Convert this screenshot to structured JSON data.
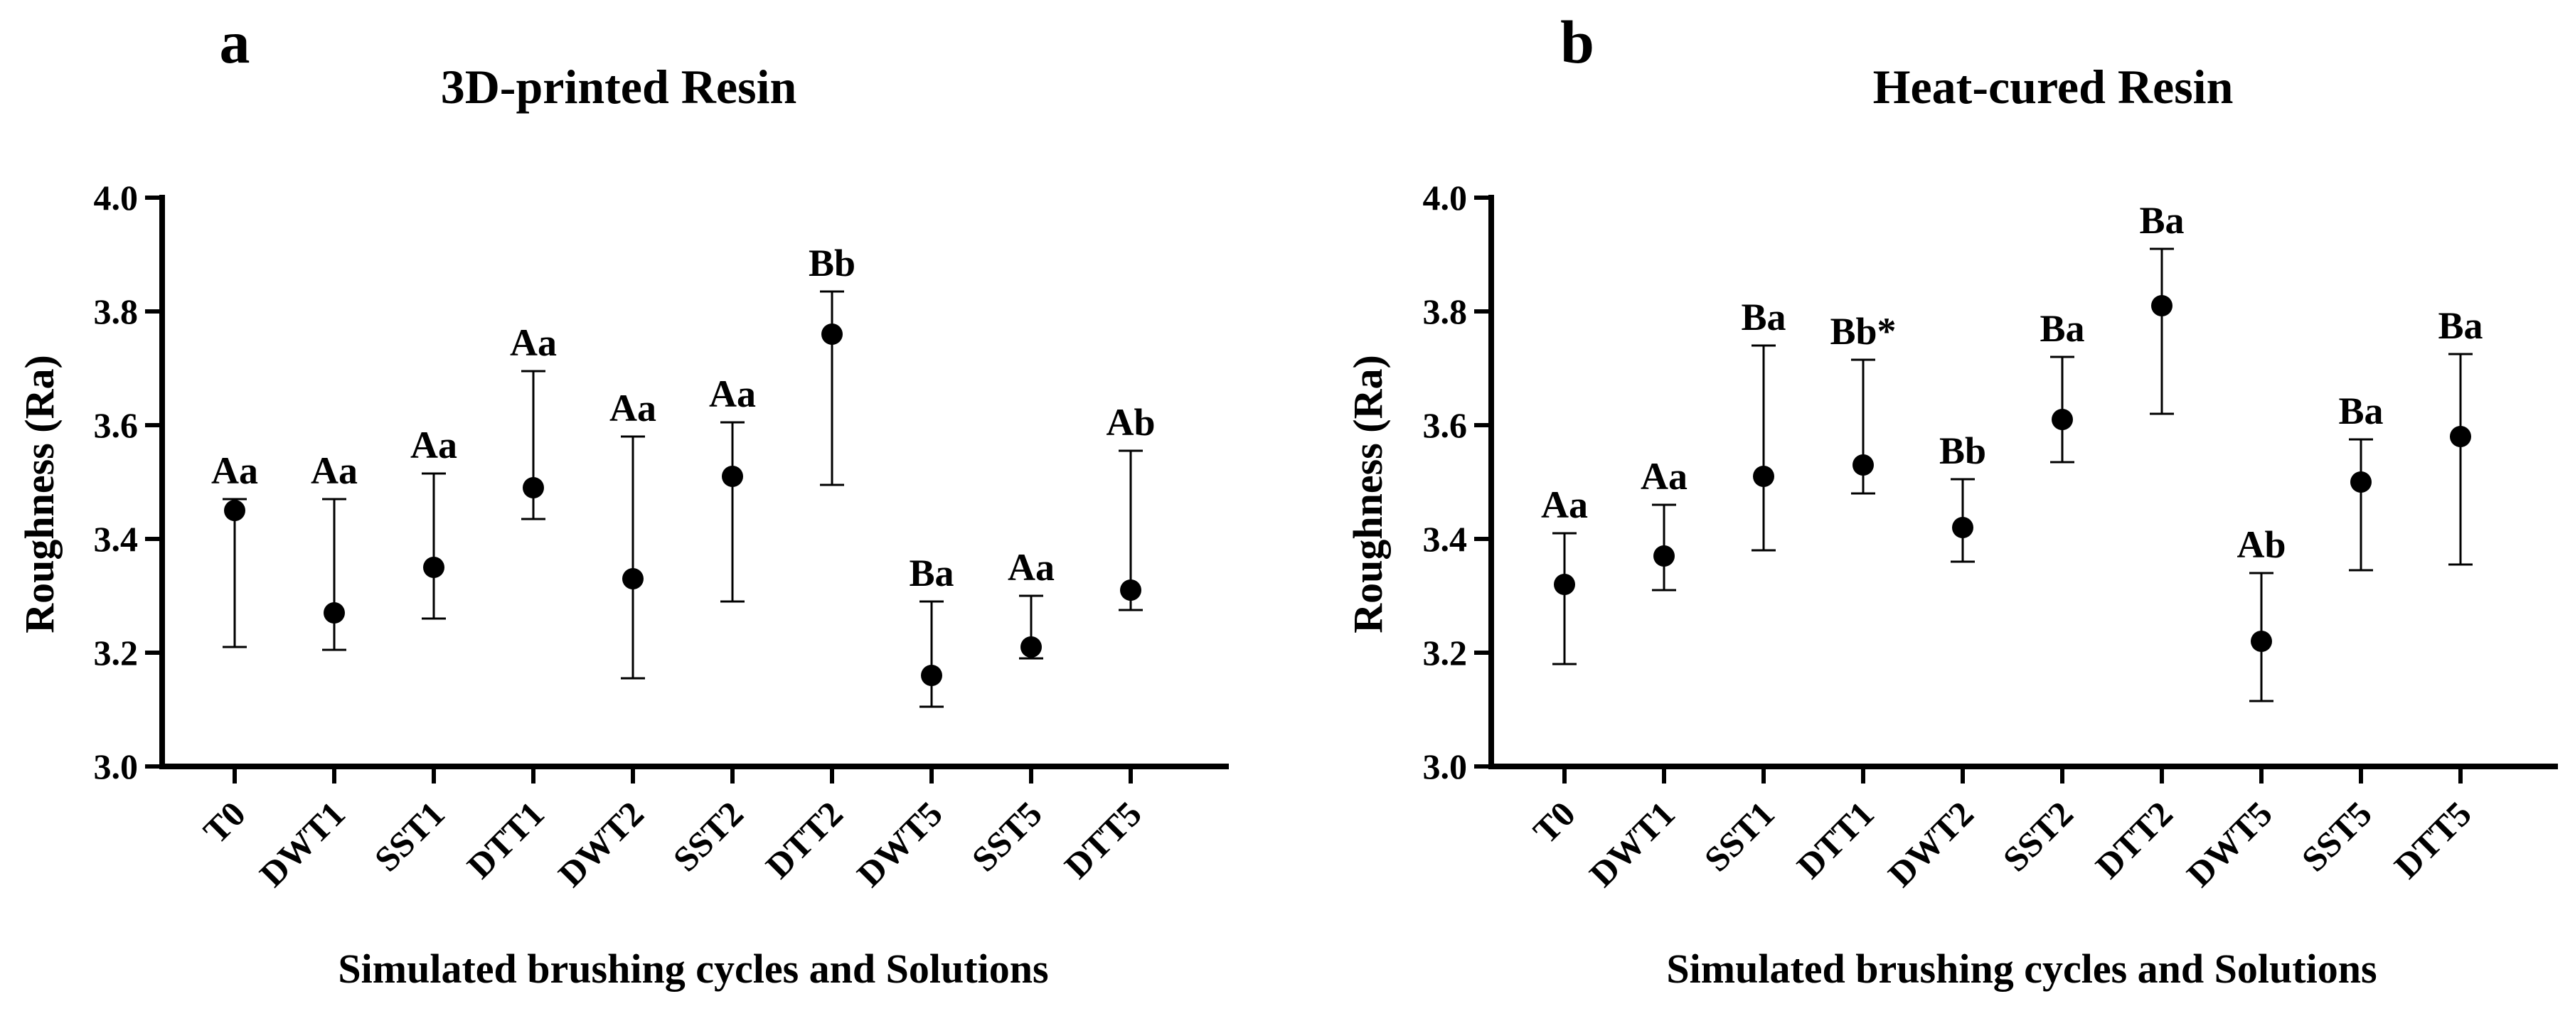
{
  "chart_data": [
    {
      "type": "scatter",
      "panel": "a",
      "title": "3D-printed Resin",
      "xlabel": "Simulated brushing cycles and Solutions",
      "ylabel": "Roughness (Ra)",
      "ylim": [
        3.0,
        4.0
      ],
      "yticks": [
        3.0,
        3.2,
        3.4,
        3.6,
        3.8,
        4.0
      ],
      "ytick_labels": [
        "3.0",
        "3.2",
        "3.4",
        "3.6",
        "3.8",
        "4.0"
      ],
      "categories": [
        "T0",
        "DWT1",
        "SST1",
        "DTT1",
        "DWT2",
        "SST2",
        "DTT2",
        "DWT5",
        "SST5",
        "DTT5"
      ],
      "values": [
        3.45,
        3.27,
        3.35,
        3.49,
        3.33,
        3.51,
        3.76,
        3.16,
        3.21,
        3.31
      ],
      "err_low": [
        3.21,
        3.205,
        3.26,
        3.435,
        3.155,
        3.29,
        3.495,
        3.105,
        3.19,
        3.275
      ],
      "err_high": [
        3.47,
        3.47,
        3.515,
        3.695,
        3.58,
        3.605,
        3.835,
        3.29,
        3.3,
        3.555
      ],
      "annotations": [
        "Aa",
        "Aa",
        "Aa",
        "Aa",
        "Aa",
        "Aa",
        "Bb",
        "Ba",
        "Aa",
        "Ab"
      ]
    },
    {
      "type": "scatter",
      "panel": "b",
      "title": "Heat-cured Resin",
      "xlabel": "Simulated brushing cycles and Solutions",
      "ylabel": "Roughness (Ra)",
      "ylim": [
        3.0,
        4.0
      ],
      "yticks": [
        3.0,
        3.2,
        3.4,
        3.6,
        3.8,
        4.0
      ],
      "ytick_labels": [
        "3.0",
        "3.2",
        "3.4",
        "3.6",
        "3.8",
        "4.0"
      ],
      "categories": [
        "T0",
        "DWT1",
        "SST1",
        "DTT1",
        "DWT2",
        "SST2",
        "DTT2",
        "DWT5",
        "SST5",
        "DTT5"
      ],
      "values": [
        3.32,
        3.37,
        3.51,
        3.53,
        3.42,
        3.61,
        3.81,
        3.22,
        3.5,
        3.58
      ],
      "err_low": [
        3.18,
        3.31,
        3.38,
        3.48,
        3.36,
        3.535,
        3.62,
        3.115,
        3.345,
        3.355
      ],
      "err_high": [
        3.41,
        3.46,
        3.74,
        3.715,
        3.505,
        3.72,
        3.91,
        3.34,
        3.575,
        3.725
      ],
      "annotations": [
        "Aa",
        "Aa",
        "Ba",
        "Bb*",
        "Bb",
        "Ba",
        "Ba",
        "Ab",
        "Ba",
        "Ba"
      ]
    }
  ]
}
